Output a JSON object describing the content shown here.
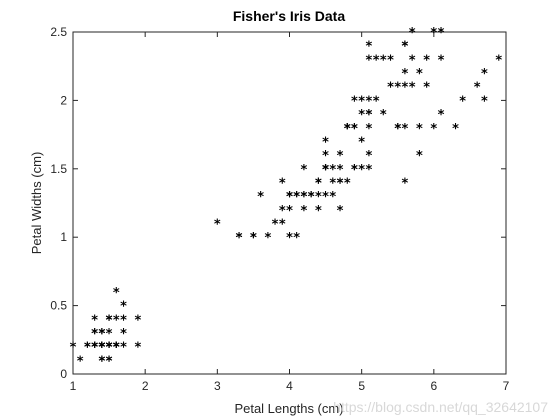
{
  "chart_data": {
    "type": "scatter",
    "title": "Fisher's Iris Data",
    "xlabel": "Petal Lengths (cm)",
    "ylabel": "Petal Widths (cm)",
    "xlim": [
      1,
      7
    ],
    "ylim": [
      0,
      2.5
    ],
    "xticks": [
      "1",
      "2",
      "3",
      "4",
      "5",
      "6",
      "7"
    ],
    "yticks": [
      "0",
      "0.5",
      "1",
      "1.5",
      "2",
      "2.5"
    ],
    "marker": "*",
    "marker_color": "#000000",
    "grid": false,
    "legend": "none",
    "series": [
      {
        "points": [
          [
            1.4,
            0.2
          ],
          [
            1.4,
            0.2
          ],
          [
            1.3,
            0.2
          ],
          [
            1.5,
            0.2
          ],
          [
            1.4,
            0.2
          ],
          [
            1.7,
            0.4
          ],
          [
            1.4,
            0.3
          ],
          [
            1.5,
            0.2
          ],
          [
            1.4,
            0.2
          ],
          [
            1.5,
            0.1
          ],
          [
            1.5,
            0.2
          ],
          [
            1.6,
            0.2
          ],
          [
            1.4,
            0.1
          ],
          [
            1.1,
            0.1
          ],
          [
            1.2,
            0.2
          ],
          [
            1.5,
            0.4
          ],
          [
            1.3,
            0.4
          ],
          [
            1.4,
            0.3
          ],
          [
            1.7,
            0.3
          ],
          [
            1.5,
            0.3
          ],
          [
            1.7,
            0.2
          ],
          [
            1.5,
            0.4
          ],
          [
            1.0,
            0.2
          ],
          [
            1.7,
            0.5
          ],
          [
            1.9,
            0.2
          ],
          [
            1.6,
            0.2
          ],
          [
            1.6,
            0.4
          ],
          [
            1.5,
            0.2
          ],
          [
            1.4,
            0.2
          ],
          [
            1.6,
            0.2
          ],
          [
            1.6,
            0.2
          ],
          [
            1.5,
            0.4
          ],
          [
            1.5,
            0.1
          ],
          [
            1.4,
            0.2
          ],
          [
            1.5,
            0.2
          ],
          [
            1.2,
            0.2
          ],
          [
            1.3,
            0.2
          ],
          [
            1.4,
            0.1
          ],
          [
            1.3,
            0.2
          ],
          [
            1.5,
            0.2
          ],
          [
            1.3,
            0.3
          ],
          [
            1.3,
            0.3
          ],
          [
            1.3,
            0.2
          ],
          [
            1.6,
            0.6
          ],
          [
            1.9,
            0.4
          ],
          [
            1.4,
            0.3
          ],
          [
            1.6,
            0.2
          ],
          [
            1.4,
            0.2
          ],
          [
            1.5,
            0.2
          ],
          [
            1.4,
            0.2
          ],
          [
            4.7,
            1.4
          ],
          [
            4.5,
            1.5
          ],
          [
            4.9,
            1.5
          ],
          [
            4.0,
            1.3
          ],
          [
            4.6,
            1.5
          ],
          [
            4.5,
            1.3
          ],
          [
            4.7,
            1.6
          ],
          [
            3.3,
            1.0
          ],
          [
            4.6,
            1.3
          ],
          [
            3.9,
            1.4
          ],
          [
            3.5,
            1.0
          ],
          [
            4.2,
            1.5
          ],
          [
            4.0,
            1.0
          ],
          [
            4.7,
            1.4
          ],
          [
            3.6,
            1.3
          ],
          [
            4.4,
            1.4
          ],
          [
            4.5,
            1.5
          ],
          [
            4.1,
            1.0
          ],
          [
            4.5,
            1.5
          ],
          [
            3.9,
            1.1
          ],
          [
            4.8,
            1.8
          ],
          [
            4.0,
            1.3
          ],
          [
            4.9,
            1.5
          ],
          [
            4.7,
            1.2
          ],
          [
            4.3,
            1.3
          ],
          [
            4.4,
            1.4
          ],
          [
            4.8,
            1.4
          ],
          [
            5.0,
            1.7
          ],
          [
            4.5,
            1.5
          ],
          [
            3.5,
            1.0
          ],
          [
            3.8,
            1.1
          ],
          [
            3.7,
            1.0
          ],
          [
            3.9,
            1.2
          ],
          [
            5.1,
            1.6
          ],
          [
            4.5,
            1.5
          ],
          [
            4.5,
            1.6
          ],
          [
            4.7,
            1.5
          ],
          [
            4.4,
            1.3
          ],
          [
            4.1,
            1.3
          ],
          [
            4.0,
            1.3
          ],
          [
            4.4,
            1.2
          ],
          [
            4.6,
            1.4
          ],
          [
            4.0,
            1.2
          ],
          [
            3.3,
            1.0
          ],
          [
            4.2,
            1.3
          ],
          [
            4.2,
            1.2
          ],
          [
            4.2,
            1.3
          ],
          [
            4.3,
            1.3
          ],
          [
            3.0,
            1.1
          ],
          [
            4.1,
            1.3
          ],
          [
            6.0,
            2.5
          ],
          [
            5.1,
            1.9
          ],
          [
            5.9,
            2.1
          ],
          [
            5.6,
            1.8
          ],
          [
            5.8,
            2.2
          ],
          [
            6.6,
            2.1
          ],
          [
            4.5,
            1.7
          ],
          [
            6.3,
            1.8
          ],
          [
            5.8,
            1.8
          ],
          [
            6.1,
            2.5
          ],
          [
            5.1,
            2.0
          ],
          [
            5.3,
            1.9
          ],
          [
            5.5,
            2.1
          ],
          [
            5.0,
            2.0
          ],
          [
            5.1,
            2.4
          ],
          [
            5.3,
            2.3
          ],
          [
            5.5,
            1.8
          ],
          [
            6.7,
            2.2
          ],
          [
            6.9,
            2.3
          ],
          [
            5.0,
            1.5
          ],
          [
            5.7,
            2.3
          ],
          [
            4.9,
            2.0
          ],
          [
            6.7,
            2.0
          ],
          [
            4.9,
            1.8
          ],
          [
            5.7,
            2.1
          ],
          [
            6.0,
            1.8
          ],
          [
            4.8,
            1.8
          ],
          [
            4.9,
            1.8
          ],
          [
            5.6,
            2.1
          ],
          [
            5.8,
            1.6
          ],
          [
            6.1,
            1.9
          ],
          [
            6.4,
            2.0
          ],
          [
            5.6,
            2.2
          ],
          [
            5.1,
            1.5
          ],
          [
            5.6,
            1.4
          ],
          [
            6.1,
            2.3
          ],
          [
            5.6,
            2.4
          ],
          [
            5.5,
            1.8
          ],
          [
            4.8,
            1.8
          ],
          [
            5.4,
            2.1
          ],
          [
            5.6,
            2.4
          ],
          [
            5.1,
            2.3
          ],
          [
            5.1,
            1.9
          ],
          [
            5.9,
            2.3
          ],
          [
            5.7,
            2.5
          ],
          [
            5.2,
            2.3
          ],
          [
            5.0,
            1.9
          ],
          [
            5.2,
            2.0
          ],
          [
            5.4,
            2.3
          ],
          [
            5.1,
            1.8
          ]
        ]
      }
    ]
  },
  "watermark": "https://blog.csdn.net/qq_32642107"
}
